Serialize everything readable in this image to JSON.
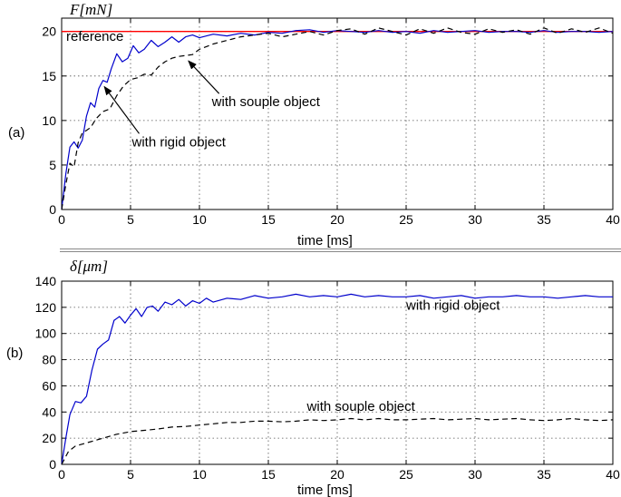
{
  "chart_data": [
    {
      "type": "line",
      "panel_label": "(a)",
      "ylabel": "F[mN]",
      "xlabel": "time [ms]",
      "xlim": [
        0,
        40
      ],
      "ylim": [
        0,
        21.5
      ],
      "xticks": [
        0,
        5,
        10,
        15,
        20,
        25,
        30,
        35,
        40
      ],
      "yticks": [
        0,
        5,
        10,
        15,
        20
      ],
      "grid": true,
      "reference": {
        "label": "reference",
        "value": 20,
        "color": "#ff0000"
      },
      "series": [
        {
          "name": "with rigid object",
          "color": "#0000cc",
          "style": "solid",
          "x": [
            0,
            0.3,
            0.6,
            0.9,
            1.2,
            1.5,
            1.8,
            2.1,
            2.4,
            2.7,
            3.0,
            3.3,
            3.6,
            4.0,
            4.4,
            4.8,
            5.2,
            5.6,
            6.0,
            6.5,
            7.0,
            7.5,
            8.0,
            8.5,
            9.0,
            9.5,
            10,
            11,
            12,
            13,
            14,
            15,
            16,
            17,
            18,
            19,
            20,
            21,
            22,
            23,
            24,
            25,
            26,
            27,
            28,
            29,
            30,
            31,
            32,
            33,
            34,
            35,
            36,
            37,
            38,
            39,
            40
          ],
          "y": [
            0,
            4.0,
            7.0,
            7.6,
            6.9,
            7.8,
            10.5,
            12.0,
            11.5,
            13.6,
            14.5,
            14.3,
            15.8,
            17.5,
            16.6,
            17.0,
            18.4,
            17.6,
            18.0,
            19.0,
            18.3,
            18.8,
            19.4,
            18.8,
            19.4,
            19.6,
            19.3,
            19.7,
            19.5,
            19.8,
            19.6,
            19.9,
            19.8,
            20.1,
            20.2,
            19.9,
            20.1,
            20.0,
            19.9,
            20.1,
            19.9,
            20.0,
            19.8,
            20.1,
            19.9,
            20.0,
            20.1,
            19.9,
            20.0,
            20.0,
            19.9,
            20.1,
            19.9,
            20.0,
            20.0,
            19.9,
            20.0
          ]
        },
        {
          "name": "with souple object",
          "color": "#000000",
          "style": "dashed",
          "x": [
            0,
            0.3,
            0.6,
            0.9,
            1.2,
            1.5,
            1.8,
            2.1,
            2.5,
            3.0,
            3.5,
            4.0,
            4.5,
            5.0,
            5.5,
            6.0,
            6.5,
            7.0,
            7.5,
            8.0,
            8.5,
            9.0,
            9.5,
            10,
            11,
            12,
            13,
            14,
            15,
            16,
            17,
            18,
            19,
            20,
            21,
            22,
            23,
            24,
            25,
            26,
            27,
            28,
            29,
            30,
            31,
            32,
            33,
            34,
            35,
            36,
            37,
            38,
            39,
            40
          ],
          "y": [
            0,
            2.8,
            5.2,
            4.8,
            7.5,
            8.6,
            8.9,
            9.2,
            10.2,
            11.0,
            11.3,
            12.8,
            13.9,
            14.6,
            14.8,
            15.2,
            15.1,
            16.0,
            16.6,
            17.0,
            17.2,
            17.3,
            17.4,
            18.0,
            18.6,
            19.0,
            19.4,
            19.6,
            19.8,
            19.4,
            19.7,
            20.0,
            19.6,
            20.1,
            20.3,
            19.7,
            20.4,
            20.0,
            19.6,
            20.3,
            19.8,
            20.4,
            19.9,
            19.7,
            20.3,
            19.9,
            20.2,
            19.7,
            20.4,
            19.8,
            20.3,
            19.9,
            20.4,
            19.8
          ]
        }
      ],
      "annotations": [
        {
          "text": "with souple object",
          "tx": 10.9,
          "ty": 11.6,
          "ax": 9.2,
          "ay": 16.7
        },
        {
          "text": "with rigid object",
          "tx": 5.1,
          "ty": 7.1,
          "ax": 3.1,
          "ay": 13.8
        }
      ]
    },
    {
      "type": "line",
      "panel_label": "(b)",
      "ylabel": "δ[μm]",
      "xlabel": "time [ms]",
      "xlim": [
        0,
        40
      ],
      "ylim": [
        0,
        140
      ],
      "xticks": [
        0,
        5,
        10,
        15,
        20,
        25,
        30,
        35,
        40
      ],
      "yticks": [
        0,
        20,
        40,
        60,
        80,
        100,
        120,
        140
      ],
      "grid": true,
      "series": [
        {
          "name": "with rigid object",
          "color": "#0000cc",
          "style": "solid",
          "x": [
            0,
            0.3,
            0.6,
            1.0,
            1.4,
            1.8,
            2.2,
            2.6,
            3.0,
            3.4,
            3.8,
            4.2,
            4.6,
            5.0,
            5.4,
            5.8,
            6.2,
            6.6,
            7.0,
            7.5,
            8.0,
            8.5,
            9.0,
            9.5,
            10,
            10.5,
            11,
            12,
            13,
            14,
            15,
            16,
            17,
            18,
            19,
            20,
            21,
            22,
            23,
            24,
            25,
            26,
            27,
            28,
            29,
            30,
            31,
            32,
            33,
            34,
            35,
            36,
            37,
            38,
            39,
            40
          ],
          "y": [
            0,
            20,
            38,
            48,
            47,
            52,
            72,
            88,
            92,
            95,
            110,
            113,
            108,
            114,
            119,
            113,
            120,
            121,
            117,
            124,
            122,
            126,
            121,
            125,
            123,
            127,
            124,
            127,
            126,
            129,
            127,
            128,
            130,
            128,
            129,
            128,
            130,
            128,
            129,
            128,
            128,
            129,
            127,
            128,
            129,
            127,
            128,
            128,
            129,
            128,
            128,
            127,
            128,
            129,
            128,
            128
          ]
        },
        {
          "name": "with souple object",
          "color": "#000000",
          "style": "dashed",
          "x": [
            0,
            0.5,
            1.0,
            2.0,
            3.0,
            4.0,
            5.0,
            6.0,
            7.0,
            8.0,
            9.0,
            10,
            11,
            12,
            13,
            14,
            15,
            16,
            17,
            18,
            19,
            20,
            21,
            22,
            23,
            24,
            25,
            26,
            27,
            28,
            29,
            30,
            31,
            32,
            33,
            34,
            35,
            36,
            37,
            38,
            39,
            40
          ],
          "y": [
            0,
            10,
            14,
            17,
            20,
            23,
            25,
            26,
            27,
            28.5,
            29,
            30,
            31,
            32,
            32,
            33,
            33,
            32.5,
            33,
            34,
            33.5,
            34,
            35,
            34,
            35,
            34,
            34,
            34.5,
            35,
            34,
            34.5,
            35,
            34,
            34.5,
            35,
            34,
            33.5,
            34,
            35,
            34,
            33.5,
            34
          ]
        }
      ],
      "annotations": [
        {
          "text": "with rigid object",
          "tx": 25,
          "ty": 118
        },
        {
          "text": "with souple object",
          "tx": 17.8,
          "ty": 41
        }
      ]
    }
  ]
}
